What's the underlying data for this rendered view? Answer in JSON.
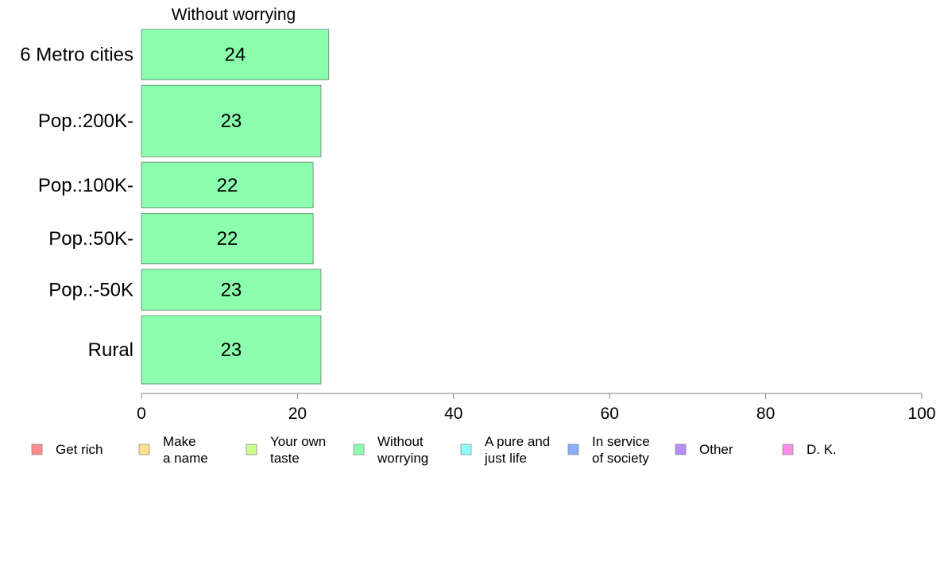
{
  "chart_data": {
    "type": "bar",
    "orientation": "horizontal",
    "title": "Without worrying",
    "categories": [
      "6 Metro cities",
      "Pop.:200K-",
      "Pop.:100K-",
      "Pop.:50K-",
      "Pop.:-50K",
      "Rural"
    ],
    "series": [
      {
        "name": "Without worrying",
        "values": [
          24,
          23,
          22,
          22,
          23,
          23
        ]
      }
    ],
    "relative_sample_sizes": [
      0.657,
      0.933,
      0.595,
      0.657,
      0.533,
      0.891
    ],
    "xlim": [
      0,
      100
    ],
    "xticks": [
      0,
      20,
      40,
      60,
      80,
      100
    ],
    "grid": false,
    "legend": {
      "placement": "bottom",
      "items": [
        {
          "label": "Get rich",
          "color": "#ff8c8c"
        },
        {
          "label": "Make\na name",
          "color": "#ffe08c"
        },
        {
          "label": "Your own\ntaste",
          "color": "#ccff8c"
        },
        {
          "label": "Without\nworrying",
          "color": "#8cffaf"
        },
        {
          "label": "A pure and\njust life",
          "color": "#8cffff"
        },
        {
          "label": "In service\nof society",
          "color": "#8cafff"
        },
        {
          "label": "Other",
          "color": "#b98cff"
        },
        {
          "label": "D. K.",
          "color": "#ff8ce6"
        }
      ]
    },
    "bar_color": "#8cffaf",
    "bar_edge_color": "#6a9a7a",
    "axis_color": "#808080"
  }
}
